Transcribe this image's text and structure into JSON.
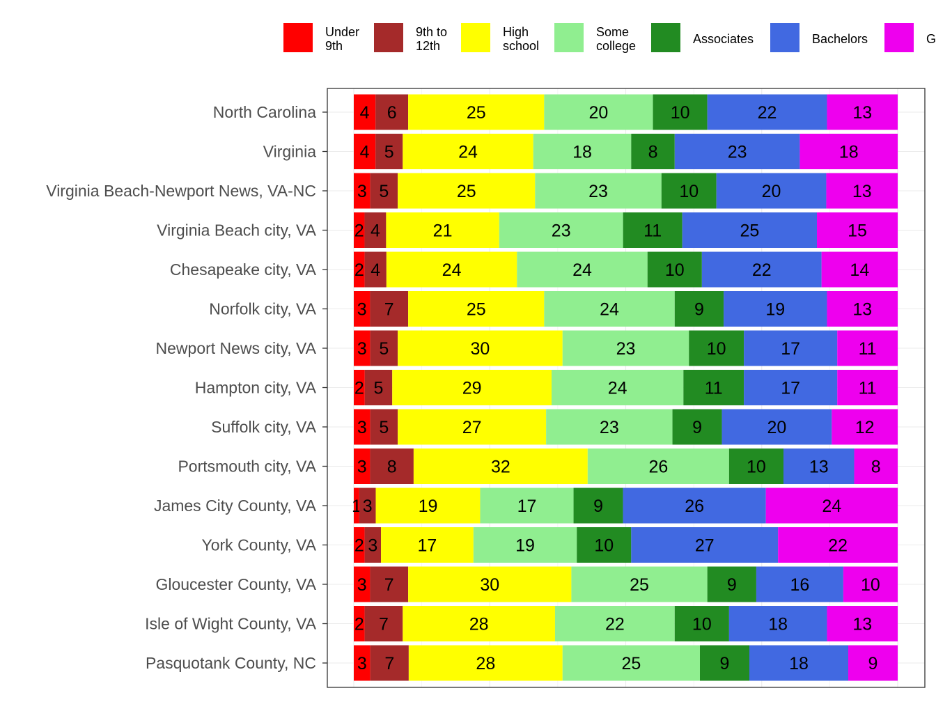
{
  "chart_data": {
    "type": "bar",
    "orientation": "horizontal",
    "stacked": true,
    "stack_mode": "percent",
    "xlim": [
      0,
      100
    ],
    "grid": true,
    "legend_position": "top",
    "title": "",
    "xlabel": "",
    "ylabel": "",
    "categories": [
      "North Carolina",
      "Virginia",
      "Virginia Beach-Newport News, VA-NC",
      "Virginia Beach city, VA",
      "Chesapeake city, VA",
      "Norfolk city, VA",
      "Newport News city, VA",
      "Hampton city, VA",
      "Suffolk city, VA",
      "Portsmouth city, VA",
      "James City County, VA",
      "York County, VA",
      "Gloucester County, VA",
      "Isle of Wight County, VA",
      "Pasquotank County, NC"
    ],
    "series": [
      {
        "name": "Under 9th",
        "legend_lines": [
          "Under",
          "9th"
        ],
        "color": "#ff0000",
        "values": [
          4,
          4,
          3,
          2,
          2,
          3,
          3,
          2,
          3,
          3,
          1,
          2,
          3,
          2,
          3
        ]
      },
      {
        "name": "9th to 12th",
        "legend_lines": [
          "9th to",
          "12th"
        ],
        "color": "#a52a2a",
        "values": [
          6,
          5,
          5,
          4,
          4,
          7,
          5,
          5,
          5,
          8,
          3,
          3,
          7,
          7,
          7
        ]
      },
      {
        "name": "High school",
        "legend_lines": [
          "High",
          "school"
        ],
        "color": "#ffff00",
        "values": [
          25,
          24,
          25,
          21,
          24,
          25,
          30,
          29,
          27,
          32,
          19,
          17,
          30,
          28,
          28
        ]
      },
      {
        "name": "Some college",
        "legend_lines": [
          "Some",
          "college"
        ],
        "color": "#90ee90",
        "values": [
          20,
          18,
          23,
          23,
          24,
          24,
          23,
          24,
          23,
          26,
          17,
          19,
          25,
          22,
          25
        ]
      },
      {
        "name": "Associates",
        "legend_lines": [
          "Associates"
        ],
        "color": "#228b22",
        "values": [
          10,
          8,
          10,
          11,
          10,
          9,
          10,
          11,
          9,
          10,
          9,
          10,
          9,
          10,
          9
        ]
      },
      {
        "name": "Bachelors",
        "legend_lines": [
          "Bachelors"
        ],
        "color": "#4169e1",
        "values": [
          22,
          23,
          20,
          25,
          22,
          19,
          17,
          17,
          20,
          13,
          26,
          27,
          16,
          18,
          18
        ]
      },
      {
        "name": "G",
        "legend_lines": [
          "G"
        ],
        "color": "#ee00ee",
        "values": [
          13,
          18,
          13,
          15,
          14,
          13,
          11,
          11,
          12,
          8,
          24,
          22,
          10,
          13,
          9
        ]
      }
    ]
  }
}
